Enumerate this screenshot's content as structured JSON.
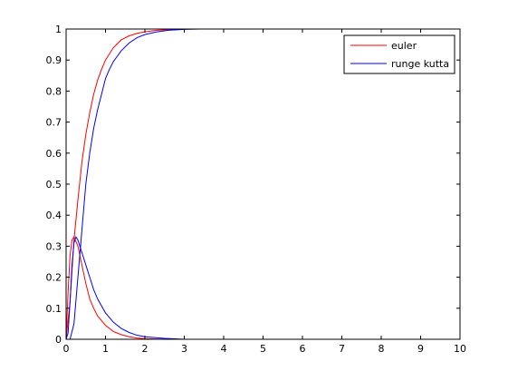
{
  "chart_data": {
    "type": "line",
    "title": "",
    "xlabel": "",
    "ylabel": "",
    "xlim": [
      0,
      10
    ],
    "ylim": [
      0,
      1
    ],
    "xticks": [
      0,
      1,
      2,
      3,
      4,
      5,
      6,
      7,
      8,
      9,
      10
    ],
    "xtick_labels": [
      "0",
      "1",
      "2",
      "3",
      "4",
      "5",
      "6",
      "7",
      "8",
      "9",
      "10"
    ],
    "yticks": [
      0,
      0.1,
      0.2,
      0.3,
      0.4,
      0.5,
      0.6,
      0.7,
      0.8,
      0.9,
      1
    ],
    "ytick_labels": [
      "0",
      "0.1",
      "0.2",
      "0.3",
      "0.4",
      "0.5",
      "0.6",
      "0.7",
      "0.8",
      "0.9",
      "1"
    ],
    "grid": false,
    "legend_position": "top-right",
    "legend": [
      {
        "label": "euler",
        "color": "#ff0000"
      },
      {
        "label": "runge kutta",
        "color": "#0000ff"
      }
    ],
    "series": [
      {
        "name": "euler",
        "color": "#ff0000",
        "curves": [
          {
            "x": [
              0,
              0.1,
              0.2,
              0.3,
              0.4,
              0.5,
              0.6,
              0.7,
              0.8,
              0.9,
              1.0,
              1.2,
              1.4,
              1.6,
              1.8,
              2.0,
              2.3,
              2.6,
              3.0
            ],
            "y": [
              0,
              0.12,
              0.32,
              0.45,
              0.57,
              0.66,
              0.73,
              0.79,
              0.835,
              0.87,
              0.9,
              0.94,
              0.965,
              0.978,
              0.986,
              0.991,
              0.996,
              0.998,
              1.0
            ]
          },
          {
            "x": [
              0,
              0.05,
              0.1,
              0.15,
              0.2,
              0.3,
              0.4,
              0.5,
              0.6,
              0.7,
              0.8,
              1.0,
              1.2,
              1.4,
              1.6,
              1.8,
              2.0,
              2.5,
              3.0,
              4.0,
              10
            ],
            "y": [
              0,
              0.15,
              0.27,
              0.32,
              0.33,
              0.3,
              0.24,
              0.18,
              0.13,
              0.1,
              0.075,
              0.045,
              0.025,
              0.015,
              0.008,
              0.004,
              0.002,
              0.0,
              0.0,
              0.0,
              0.0
            ]
          }
        ]
      },
      {
        "name": "runge kutta",
        "color": "#0000ff",
        "curves": [
          {
            "x": [
              0,
              0.1,
              0.2,
              0.3,
              0.4,
              0.5,
              0.6,
              0.7,
              0.8,
              0.9,
              1.0,
              1.1,
              1.2,
              1.4,
              1.6,
              1.8,
              2.0,
              2.3,
              2.6,
              3.0,
              3.4
            ],
            "y": [
              0,
              0.0,
              0.05,
              0.2,
              0.35,
              0.5,
              0.6,
              0.68,
              0.74,
              0.79,
              0.84,
              0.87,
              0.895,
              0.93,
              0.955,
              0.972,
              0.982,
              0.991,
              0.996,
              0.999,
              1.0
            ]
          },
          {
            "x": [
              0,
              0.05,
              0.1,
              0.15,
              0.2,
              0.25,
              0.3,
              0.4,
              0.5,
              0.6,
              0.7,
              0.8,
              1.0,
              1.2,
              1.4,
              1.6,
              1.8,
              2.0,
              2.5,
              3.0,
              4.0,
              10
            ],
            "y": [
              0,
              0.02,
              0.12,
              0.24,
              0.31,
              0.33,
              0.32,
              0.28,
              0.24,
              0.2,
              0.16,
              0.13,
              0.085,
              0.055,
              0.035,
              0.022,
              0.013,
              0.008,
              0.003,
              0.0,
              0.0,
              0.0
            ]
          }
        ]
      }
    ]
  }
}
